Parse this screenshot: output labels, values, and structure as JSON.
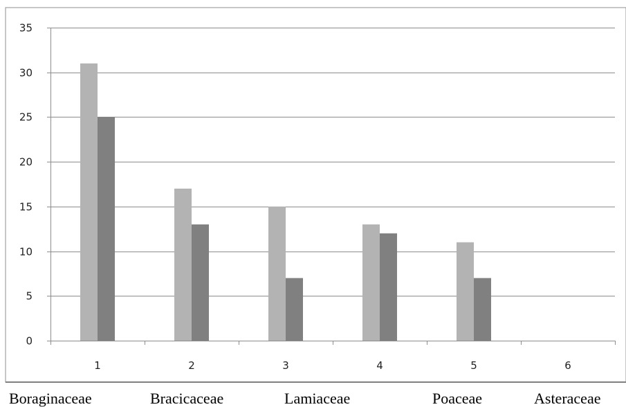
{
  "chart_data": {
    "type": "bar",
    "title": "",
    "xlabel": "",
    "ylabel": "",
    "categories": [
      "1",
      "2",
      "3",
      "4",
      "5",
      "6"
    ],
    "series": [
      {
        "values": [
          31,
          17,
          15,
          13,
          11,
          0
        ],
        "color": "#b3b3b3"
      },
      {
        "values": [
          25,
          13,
          7,
          12,
          7,
          0
        ],
        "color": "#808080"
      }
    ],
    "ylim": [
      0,
      35
    ],
    "yticks": [
      "0",
      "5",
      "10",
      "15",
      "20",
      "25",
      "30",
      "35"
    ],
    "grid": true,
    "legend": "none"
  },
  "family_labels": [
    "Boraginaceae",
    "Bracicaceae",
    "Lamiaceae",
    "Poaceae",
    "Asteraceae"
  ]
}
